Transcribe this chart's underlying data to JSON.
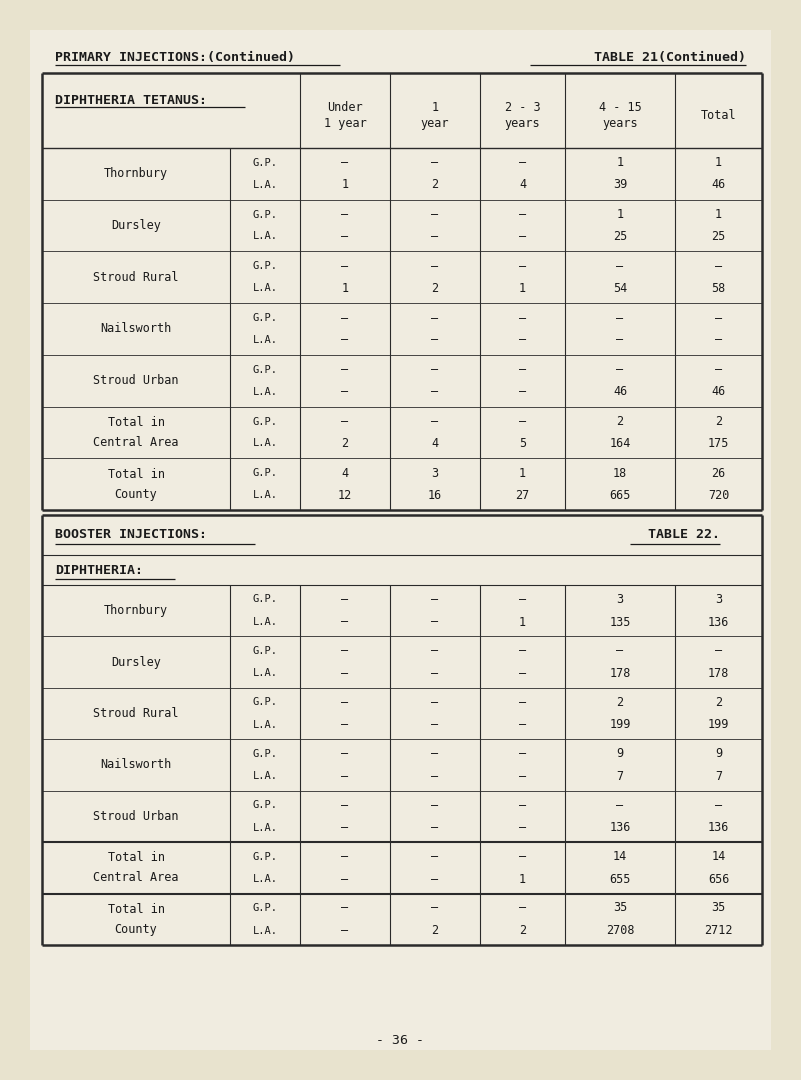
{
  "page_bg": "#e8e3ce",
  "paper_bg": "#f0ece0",
  "dark": "#1a1a1a",
  "header_left": "PRIMARY INJECTIONS:(Continued)",
  "header_right": "TABLE 21(Continued)",
  "page_number": "- 36 -",
  "table1_title": "DIPHTHERIA TETANUS:",
  "table1_col_headers": [
    "Under\n1 year",
    "1\nyear",
    "2 - 3\nyears",
    "4 - 15\nyears",
    "Total"
  ],
  "table1_rows": [
    {
      "label": "Thornbury",
      "sub": [
        "G.P.",
        "L.A."
      ],
      "data": [
        [
          "–",
          "–",
          "–",
          "1",
          "1"
        ],
        [
          "1",
          "2",
          "4",
          "39",
          "46"
        ]
      ]
    },
    {
      "label": "Dursley",
      "sub": [
        "G.P.",
        "L.A."
      ],
      "data": [
        [
          "–",
          "–",
          "–",
          "1",
          "1"
        ],
        [
          "–",
          "–",
          "–",
          "25",
          "25"
        ]
      ]
    },
    {
      "label": "Stroud Rural",
      "sub": [
        "G.P.",
        "L.A."
      ],
      "data": [
        [
          "–",
          "–",
          "–",
          "–",
          "–"
        ],
        [
          "1",
          "2",
          "1",
          "54",
          "58"
        ]
      ]
    },
    {
      "label": "Nailsworth",
      "sub": [
        "G.P.",
        "L.A."
      ],
      "data": [
        [
          "–",
          "–",
          "–",
          "–",
          "–"
        ],
        [
          "–",
          "–",
          "–",
          "–",
          "–"
        ]
      ]
    },
    {
      "label": "Stroud Urban",
      "sub": [
        "G.P.",
        "L.A."
      ],
      "data": [
        [
          "–",
          "–",
          "–",
          "–",
          "–"
        ],
        [
          "–",
          "–",
          "–",
          "46",
          "46"
        ]
      ]
    },
    {
      "label": "Total in\nCentral Area",
      "sub": [
        "G.P.",
        "L.A."
      ],
      "data": [
        [
          "–",
          "–",
          "–",
          "2",
          "2"
        ],
        [
          "2",
          "4",
          "5",
          "164",
          "175"
        ]
      ]
    },
    {
      "label": "Total in\nCounty",
      "sub": [
        "G.P.",
        "L.A."
      ],
      "data": [
        [
          "4",
          "3",
          "1",
          "18",
          "26"
        ],
        [
          "12",
          "16",
          "27",
          "665",
          "720"
        ]
      ]
    }
  ],
  "table2_header_left": "BOOSTER INJECTIONS:",
  "table2_header_right": "TABLE 22.",
  "table2_title": "DIPHTHERIA:",
  "table2_rows": [
    {
      "label": "Thornbury",
      "sub": [
        "G.P.",
        "L.A."
      ],
      "data": [
        [
          "–",
          "–",
          "–",
          "3",
          "3"
        ],
        [
          "–",
          "–",
          "1",
          "135",
          "136"
        ]
      ]
    },
    {
      "label": "Dursley",
      "sub": [
        "G.P.",
        "L.A."
      ],
      "data": [
        [
          "–",
          "–",
          "–",
          "–",
          "–"
        ],
        [
          "–",
          "–",
          "–",
          "178",
          "178"
        ]
      ]
    },
    {
      "label": "Stroud Rural",
      "sub": [
        "G.P.",
        "L.A."
      ],
      "data": [
        [
          "–",
          "–",
          "–",
          "2",
          "2"
        ],
        [
          "–",
          "–",
          "–",
          "199",
          "199"
        ]
      ]
    },
    {
      "label": "Nailsworth",
      "sub": [
        "G.P.",
        "L.A."
      ],
      "data": [
        [
          "–",
          "–",
          "–",
          "9",
          "9"
        ],
        [
          "–",
          "–",
          "–",
          "7",
          "7"
        ]
      ]
    },
    {
      "label": "Stroud Urban",
      "sub": [
        "G.P.",
        "L.A."
      ],
      "data": [
        [
          "–",
          "–",
          "–",
          "–",
          "–"
        ],
        [
          "–",
          "–",
          "–",
          "136",
          "136"
        ]
      ]
    },
    {
      "label": "Total in\nCentral Area",
      "sub": [
        "G.P.",
        "L.A."
      ],
      "data": [
        [
          "–",
          "–",
          "–",
          "14",
          "14"
        ],
        [
          "–",
          "–",
          "1",
          "655",
          "656"
        ]
      ]
    },
    {
      "label": "Total in\nCounty",
      "sub": [
        "G.P.",
        "L.A."
      ],
      "data": [
        [
          "–",
          "–",
          "–",
          "35",
          "35"
        ],
        [
          "–",
          "2",
          "2",
          "2708",
          "2712"
        ]
      ]
    }
  ]
}
